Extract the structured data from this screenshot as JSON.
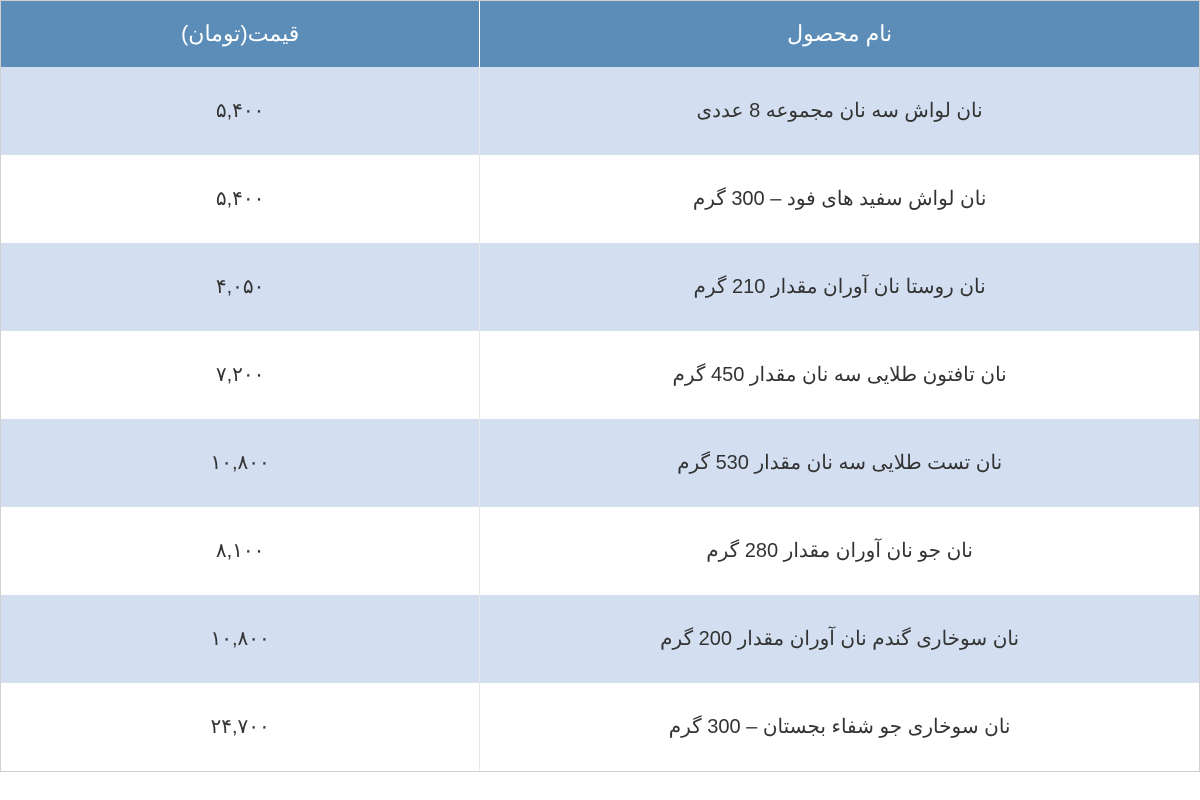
{
  "table": {
    "type": "table",
    "header_bg_color": "#5b8db8",
    "header_text_color": "#ffffff",
    "row_even_bg": "#d3dff0",
    "row_odd_bg": "#ffffff",
    "text_color": "#333333",
    "border_color": "#d0d0d0",
    "header_fontsize": 22,
    "cell_fontsize": 20,
    "columns": {
      "product": {
        "label": "نام محصول",
        "width": "60%",
        "align": "center"
      },
      "price": {
        "label": "قیمت(تومان)",
        "width": "40%",
        "align": "center"
      }
    },
    "rows": [
      {
        "product": "نان لواش سه نان مجموعه 8 عددی",
        "price": "۵,۴۰۰"
      },
      {
        "product": "نان لواش سفید های فود – 300 گرم",
        "price": "۵,۴۰۰"
      },
      {
        "product": "نان روستا نان آوران مقدار 210 گرم",
        "price": "۴,۰۵۰"
      },
      {
        "product": "نان تافتون طلایی سه نان مقدار 450 گرم",
        "price": "۷,۲۰۰"
      },
      {
        "product": "نان تست طلایی سه نان مقدار 530 گرم",
        "price": "۱۰,۸۰۰"
      },
      {
        "product": "نان جو نان آوران مقدار 280 گرم",
        "price": "۸,۱۰۰"
      },
      {
        "product": "نان سوخاری گندم نان آوران مقدار 200 گرم",
        "price": "۱۰,۸۰۰"
      },
      {
        "product": "نان سوخاری جو شفاء بجستان – 300 گرم",
        "price": "۲۴,۷۰۰"
      }
    ]
  }
}
